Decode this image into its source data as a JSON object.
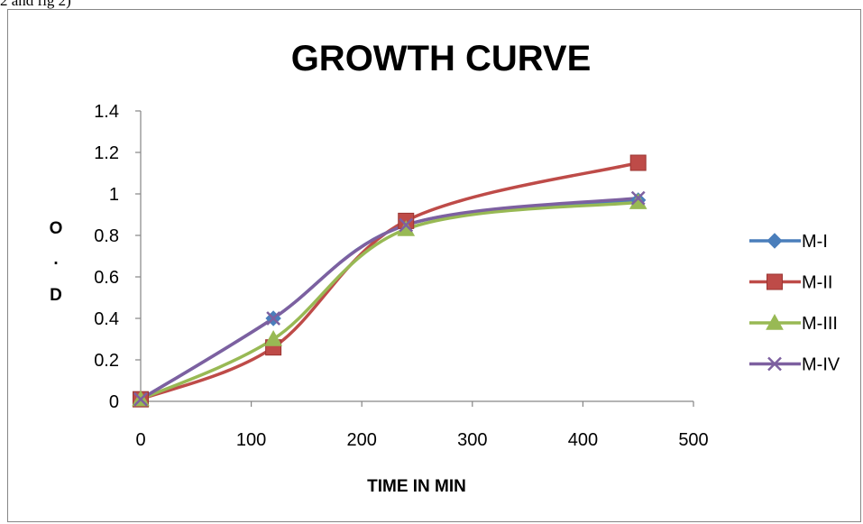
{
  "page_fragment": "2 and fig 2)",
  "chart_data": {
    "type": "line",
    "title": "GROWTH CURVE",
    "xlabel": "TIME IN MIN",
    "ylabel_chars": [
      "O",
      ".",
      "D"
    ],
    "x": [
      0,
      120,
      240,
      450
    ],
    "xlim": [
      0,
      500
    ],
    "ylim": [
      0,
      1.4
    ],
    "x_ticks": [
      0,
      100,
      200,
      300,
      400,
      500
    ],
    "y_ticks": [
      0,
      0.2,
      0.4,
      0.6,
      0.8,
      1,
      1.2,
      1.4
    ],
    "x_tick_labels": [
      "0",
      "100",
      "200",
      "300",
      "400",
      "500"
    ],
    "y_tick_labels": [
      "0",
      "0.2",
      "0.4",
      "0.6",
      "0.8",
      "1",
      "1.2",
      "1.4"
    ],
    "grid": false,
    "legend_position": "right",
    "series": [
      {
        "name": "M-I",
        "values": [
          0.01,
          0.4,
          0.85,
          0.97
        ],
        "color": "#4A7EBB",
        "marker": "diamond"
      },
      {
        "name": "M-II",
        "values": [
          0.01,
          0.26,
          0.87,
          1.15
        ],
        "color": "#BE4B48",
        "marker": "square"
      },
      {
        "name": "M-III",
        "values": [
          0.01,
          0.3,
          0.83,
          0.96
        ],
        "color": "#98B954",
        "marker": "triangle"
      },
      {
        "name": "M-IV",
        "values": [
          0.01,
          0.4,
          0.85,
          0.98
        ],
        "color": "#7D60A0",
        "marker": "x"
      }
    ]
  }
}
